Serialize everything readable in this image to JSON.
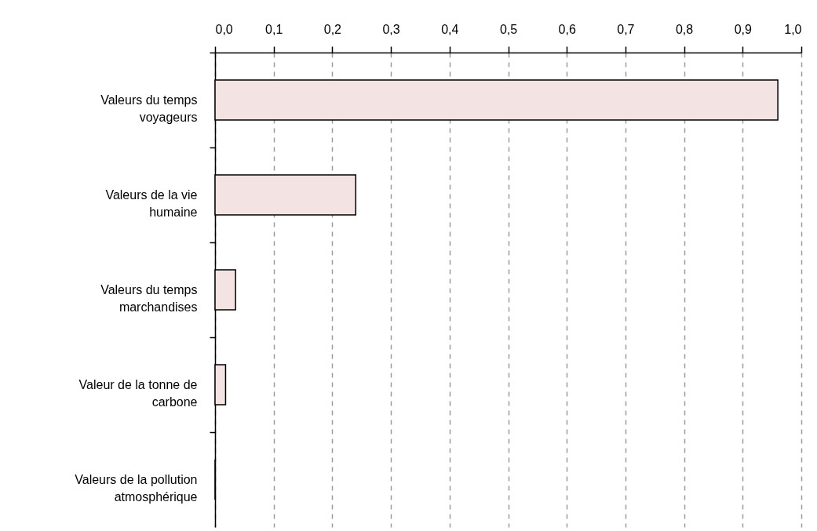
{
  "chart_data": {
    "type": "bar",
    "orientation": "horizontal",
    "categories": [
      "Valeurs du temps voyageurs",
      "Valeurs de la vie humaine",
      "Valeurs du temps marchandises",
      "Valeur de la tonne de carbone",
      "Valeurs de la pollution atmosphérique"
    ],
    "values": [
      0.96,
      0.24,
      0.035,
      0.018,
      0
    ],
    "color": "#f3e3e3",
    "xlim": [
      0,
      1
    ],
    "xticks": [
      {
        "value": 0,
        "label": "0,0"
      },
      {
        "value": 0.1,
        "label": "0,1"
      },
      {
        "value": 0.2,
        "label": "0,2"
      },
      {
        "value": 0.3,
        "label": "0,3"
      },
      {
        "value": 0.4,
        "label": "0,4"
      },
      {
        "value": 0.5,
        "label": "0,5"
      },
      {
        "value": 0.6,
        "label": "0,6"
      },
      {
        "value": 0.7,
        "label": "0,7"
      },
      {
        "value": 0.8,
        "label": "0,8"
      },
      {
        "value": 0.9,
        "label": "0,9"
      },
      {
        "value": 1,
        "label": "1,0"
      }
    ],
    "grid": "x"
  }
}
